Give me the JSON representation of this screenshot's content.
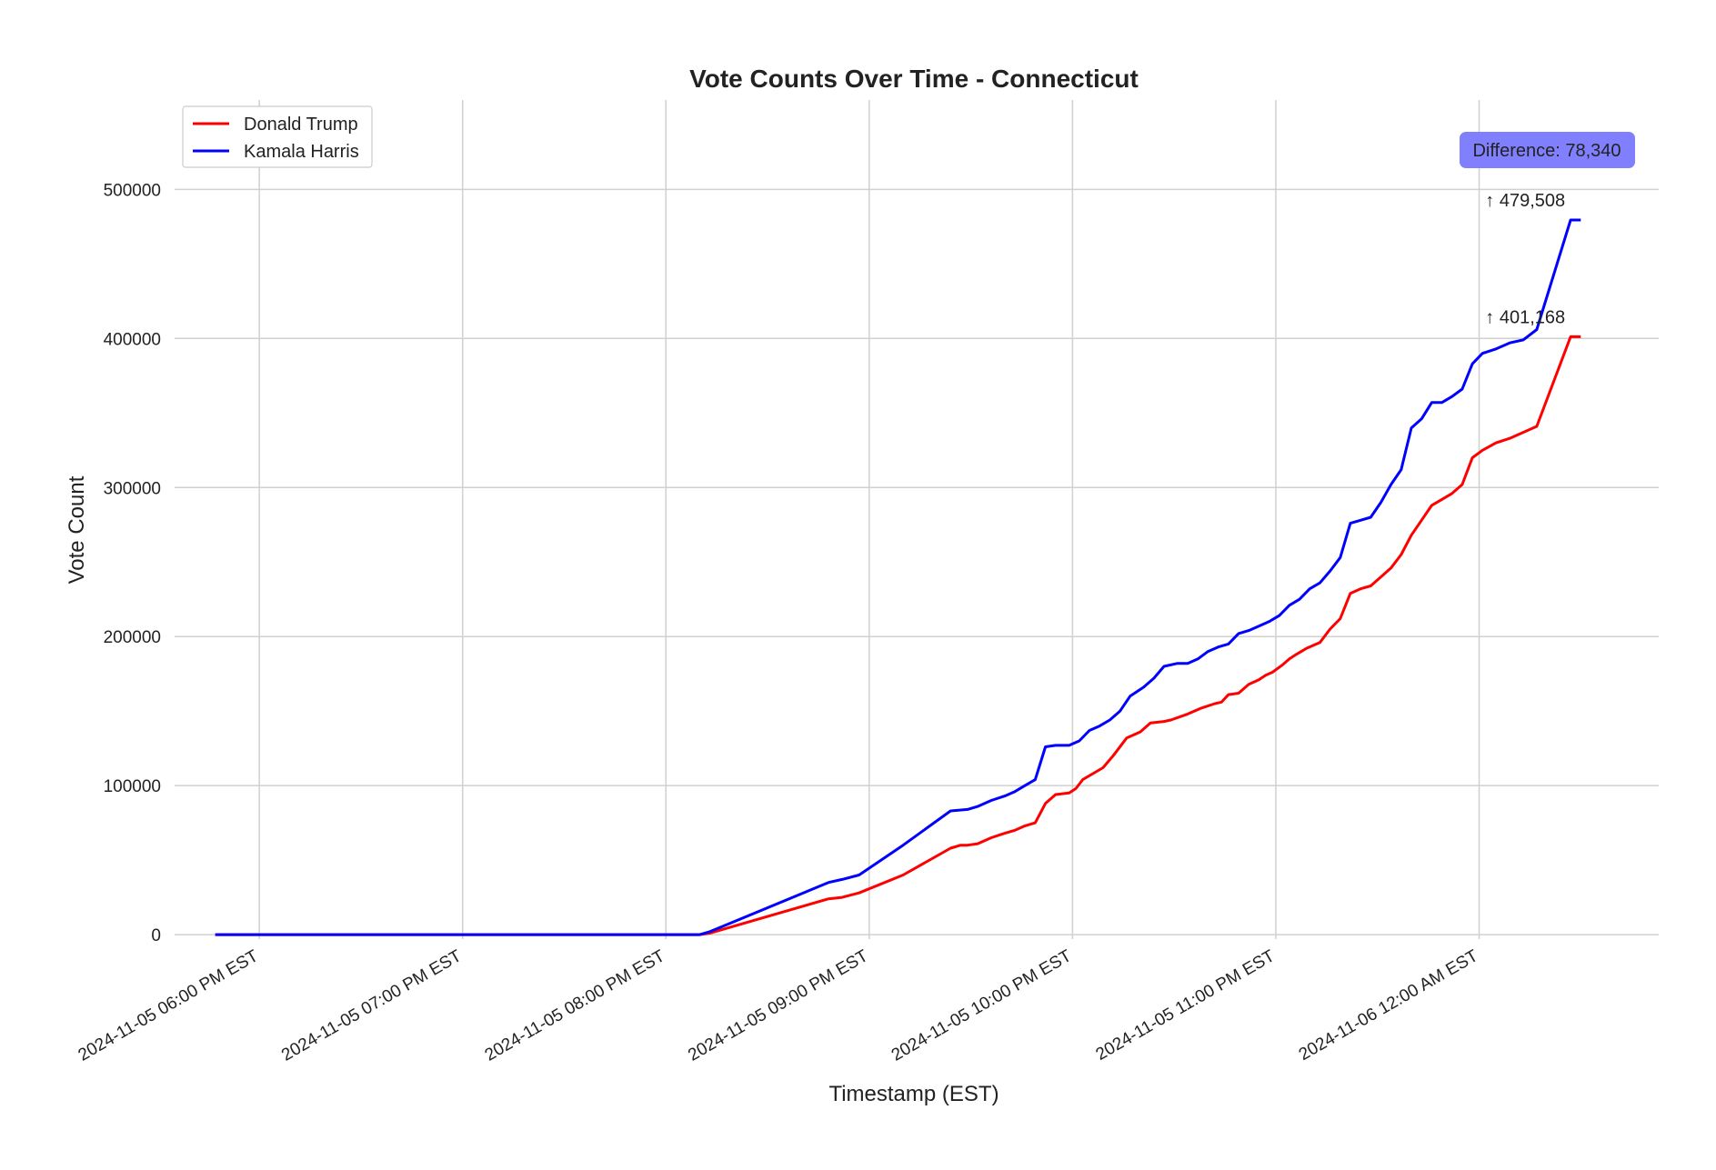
{
  "chart_data": {
    "type": "line",
    "title": "Vote Counts Over Time - Connecticut",
    "xlabel": "Timestamp (EST)",
    "ylabel": "Vote Count",
    "ylim": [
      -3000,
      560000
    ],
    "xlim": [
      "2024-11-05 17:35",
      "2024-11-06 00:53"
    ],
    "grid": true,
    "legend_position": "top-left",
    "x_ticks": [
      {
        "t": "2024-11-05 18:00",
        "label": "2024-11-05 06:00 PM EST"
      },
      {
        "t": "2024-11-05 19:00",
        "label": "2024-11-05 07:00 PM EST"
      },
      {
        "t": "2024-11-05 20:00",
        "label": "2024-11-05 08:00 PM EST"
      },
      {
        "t": "2024-11-05 21:00",
        "label": "2024-11-05 09:00 PM EST"
      },
      {
        "t": "2024-11-05 22:00",
        "label": "2024-11-05 10:00 PM EST"
      },
      {
        "t": "2024-11-05 23:00",
        "label": "2024-11-05 11:00 PM EST"
      },
      {
        "t": "2024-11-06 00:00",
        "label": "2024-11-06 12:00 AM EST"
      }
    ],
    "y_ticks": [
      0,
      100000,
      200000,
      300000,
      400000,
      500000
    ],
    "series": [
      {
        "name": "Donald Trump",
        "color": "#ff0000",
        "points": [
          [
            "2024-11-05 17:47",
            0
          ],
          [
            "2024-11-05 20:10",
            0
          ],
          [
            "2024-11-05 20:13",
            1000
          ],
          [
            "2024-11-05 20:48",
            24000
          ],
          [
            "2024-11-05 20:52",
            25000
          ],
          [
            "2024-11-05 20:57",
            28000
          ],
          [
            "2024-11-05 21:10",
            40000
          ],
          [
            "2024-11-05 21:24",
            58000
          ],
          [
            "2024-11-05 21:27",
            60000
          ],
          [
            "2024-11-05 21:29",
            60000
          ],
          [
            "2024-11-05 21:32",
            61000
          ],
          [
            "2024-11-05 21:36",
            65000
          ],
          [
            "2024-11-05 21:40",
            68000
          ],
          [
            "2024-11-05 21:43",
            70000
          ],
          [
            "2024-11-05 21:46",
            73000
          ],
          [
            "2024-11-05 21:49",
            75000
          ],
          [
            "2024-11-05 21:52",
            88000
          ],
          [
            "2024-11-05 21:55",
            94000
          ],
          [
            "2024-11-05 21:59",
            95000
          ],
          [
            "2024-11-05 22:01",
            98000
          ],
          [
            "2024-11-05 22:03",
            104000
          ],
          [
            "2024-11-05 22:06",
            108000
          ],
          [
            "2024-11-05 22:09",
            112000
          ],
          [
            "2024-11-05 22:12",
            120000
          ],
          [
            "2024-11-05 22:16",
            132000
          ],
          [
            "2024-11-05 22:20",
            136000
          ],
          [
            "2024-11-05 22:23",
            142000
          ],
          [
            "2024-11-05 22:27",
            143000
          ],
          [
            "2024-11-05 22:29",
            144000
          ],
          [
            "2024-11-05 22:34",
            148000
          ],
          [
            "2024-11-05 22:38",
            152000
          ],
          [
            "2024-11-05 22:42",
            155000
          ],
          [
            "2024-11-05 22:44",
            156000
          ],
          [
            "2024-11-05 22:46",
            161000
          ],
          [
            "2024-11-05 22:49",
            162000
          ],
          [
            "2024-11-05 22:52",
            168000
          ],
          [
            "2024-11-05 22:55",
            171000
          ],
          [
            "2024-11-05 22:57",
            174000
          ],
          [
            "2024-11-05 22:59",
            176000
          ],
          [
            "2024-11-05 23:02",
            181000
          ],
          [
            "2024-11-05 23:04",
            185000
          ],
          [
            "2024-11-05 23:06",
            188000
          ],
          [
            "2024-11-05 23:09",
            192000
          ],
          [
            "2024-11-05 23:13",
            196000
          ],
          [
            "2024-11-05 23:16",
            205000
          ],
          [
            "2024-11-05 23:19",
            212000
          ],
          [
            "2024-11-05 23:22",
            229000
          ],
          [
            "2024-11-05 23:25",
            232000
          ],
          [
            "2024-11-05 23:28",
            234000
          ],
          [
            "2024-11-05 23:31",
            240000
          ],
          [
            "2024-11-05 23:34",
            246000
          ],
          [
            "2024-11-05 23:37",
            255000
          ],
          [
            "2024-11-05 23:40",
            268000
          ],
          [
            "2024-11-05 23:43",
            278000
          ],
          [
            "2024-11-05 23:46",
            288000
          ],
          [
            "2024-11-05 23:49",
            292000
          ],
          [
            "2024-11-05 23:52",
            296000
          ],
          [
            "2024-11-05 23:55",
            302000
          ],
          [
            "2024-11-05 23:58",
            320000
          ],
          [
            "2024-11-06 00:01",
            325000
          ],
          [
            "2024-11-06 00:05",
            330000
          ],
          [
            "2024-11-06 00:09",
            333000
          ],
          [
            "2024-11-06 00:13",
            337000
          ],
          [
            "2024-11-06 00:17",
            341000
          ],
          [
            "2024-11-06 00:27",
            401168
          ],
          [
            "2024-11-06 00:30",
            401168
          ]
        ]
      },
      {
        "name": "Kamala Harris",
        "color": "#0000ff",
        "points": [
          [
            "2024-11-05 17:47",
            0
          ],
          [
            "2024-11-05 20:10",
            0
          ],
          [
            "2024-11-05 20:13",
            2000
          ],
          [
            "2024-11-05 20:48",
            35000
          ],
          [
            "2024-11-05 20:52",
            37000
          ],
          [
            "2024-11-05 20:57",
            40000
          ],
          [
            "2024-11-05 21:10",
            60000
          ],
          [
            "2024-11-05 21:24",
            83000
          ],
          [
            "2024-11-05 21:29",
            84000
          ],
          [
            "2024-11-05 21:32",
            86000
          ],
          [
            "2024-11-05 21:36",
            90000
          ],
          [
            "2024-11-05 21:40",
            93000
          ],
          [
            "2024-11-05 21:43",
            96000
          ],
          [
            "2024-11-05 21:46",
            100000
          ],
          [
            "2024-11-05 21:49",
            104000
          ],
          [
            "2024-11-05 21:52",
            126000
          ],
          [
            "2024-11-05 21:55",
            127000
          ],
          [
            "2024-11-05 21:59",
            127000
          ],
          [
            "2024-11-05 22:02",
            130000
          ],
          [
            "2024-11-05 22:05",
            137000
          ],
          [
            "2024-11-05 22:08",
            140000
          ],
          [
            "2024-11-05 22:11",
            144000
          ],
          [
            "2024-11-05 22:14",
            150000
          ],
          [
            "2024-11-05 22:17",
            160000
          ],
          [
            "2024-11-05 22:21",
            166000
          ],
          [
            "2024-11-05 22:24",
            172000
          ],
          [
            "2024-11-05 22:27",
            180000
          ],
          [
            "2024-11-05 22:31",
            182000
          ],
          [
            "2024-11-05 22:34",
            182000
          ],
          [
            "2024-11-05 22:37",
            185000
          ],
          [
            "2024-11-05 22:40",
            190000
          ],
          [
            "2024-11-05 22:43",
            193000
          ],
          [
            "2024-11-05 22:46",
            195000
          ],
          [
            "2024-11-05 22:49",
            202000
          ],
          [
            "2024-11-05 22:52",
            204000
          ],
          [
            "2024-11-05 22:55",
            207000
          ],
          [
            "2024-11-05 22:58",
            210000
          ],
          [
            "2024-11-05 23:01",
            214000
          ],
          [
            "2024-11-05 23:04",
            221000
          ],
          [
            "2024-11-05 23:07",
            225000
          ],
          [
            "2024-11-05 23:10",
            232000
          ],
          [
            "2024-11-05 23:13",
            236000
          ],
          [
            "2024-11-05 23:16",
            244000
          ],
          [
            "2024-11-05 23:19",
            253000
          ],
          [
            "2024-11-05 23:22",
            276000
          ],
          [
            "2024-11-05 23:25",
            278000
          ],
          [
            "2024-11-05 23:28",
            280000
          ],
          [
            "2024-11-05 23:31",
            290000
          ],
          [
            "2024-11-05 23:34",
            302000
          ],
          [
            "2024-11-05 23:37",
            312000
          ],
          [
            "2024-11-05 23:40",
            340000
          ],
          [
            "2024-11-05 23:43",
            346000
          ],
          [
            "2024-11-05 23:46",
            357000
          ],
          [
            "2024-11-05 23:49",
            357000
          ],
          [
            "2024-11-05 23:52",
            361000
          ],
          [
            "2024-11-05 23:55",
            366000
          ],
          [
            "2024-11-05 23:58",
            383000
          ],
          [
            "2024-11-06 00:01",
            390000
          ],
          [
            "2024-11-06 00:05",
            393000
          ],
          [
            "2024-11-06 00:09",
            397000
          ],
          [
            "2024-11-06 00:13",
            399000
          ],
          [
            "2024-11-06 00:17",
            406000
          ],
          [
            "2024-11-06 00:27",
            479508
          ],
          [
            "2024-11-06 00:30",
            479508
          ]
        ]
      }
    ],
    "annotations": [
      {
        "text": "↑ 479,508",
        "series": "Kamala Harris"
      },
      {
        "text": "↑ 401,168",
        "series": "Donald Trump"
      }
    ],
    "difference_label": "Difference: 78,340",
    "difference_box_color": "#8080ff"
  }
}
